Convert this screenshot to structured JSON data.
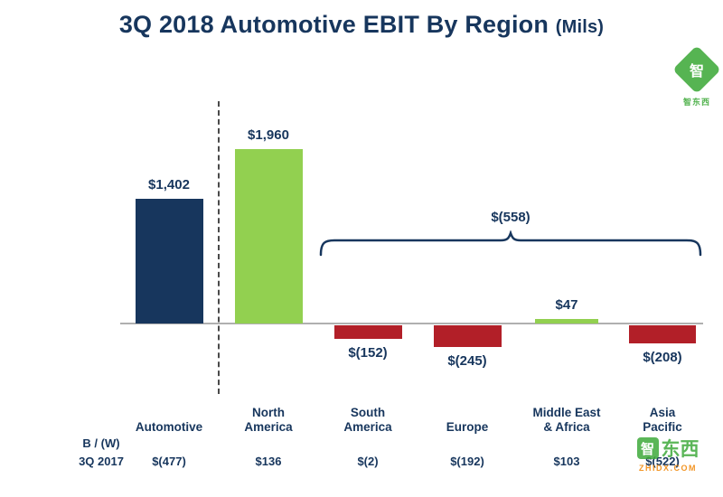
{
  "title": {
    "main": "3Q 2018 Automotive EBIT By Region",
    "unit": "(Mils)"
  },
  "chart_data": {
    "type": "bar",
    "title": "3Q 2018 Automotive EBIT By Region (Mils)",
    "categories": [
      "Automotive",
      "North America",
      "South America",
      "Europe",
      "Middle East & Africa",
      "Asia Pacific"
    ],
    "category_label_lines": [
      [
        "Automotive"
      ],
      [
        "North",
        "America"
      ],
      [
        "South",
        "America"
      ],
      [
        "Europe"
      ],
      [
        "Middle East",
        "& Africa"
      ],
      [
        "Asia",
        "Pacific"
      ]
    ],
    "values": [
      1402,
      1960,
      -152,
      -245,
      47,
      -208
    ],
    "value_labels": [
      "$1,402",
      "$1,960",
      "$(152)",
      "$(245)",
      "$47",
      "$(208)"
    ],
    "bar_colors": [
      "#17365d",
      "#92d050",
      "#b21f28",
      "#b21f28",
      "#92d050",
      "#b21f28"
    ],
    "ylim": [
      -300,
      2100
    ],
    "grid": false,
    "legend": "none",
    "separator_after": "Automotive",
    "bracket": {
      "label": "$(558)",
      "from": "South America",
      "to": "Asia Pacific"
    },
    "comparison_row": {
      "label_line1": "B / (W)",
      "label_line2": "3Q 2017",
      "values": [
        "$(477)",
        "$136",
        "$(2)",
        "$(192)",
        "$103",
        "$(522)"
      ]
    }
  },
  "colors": {
    "navy": "#17365d",
    "green": "#92d050",
    "red": "#b21f28",
    "axis_gray": "#b0b0b0"
  },
  "watermark": {
    "cjk_icon_char": "智",
    "cjk_text": "东西",
    "cjk_full": "智东西",
    "domain": "ZHIDX.COM"
  }
}
